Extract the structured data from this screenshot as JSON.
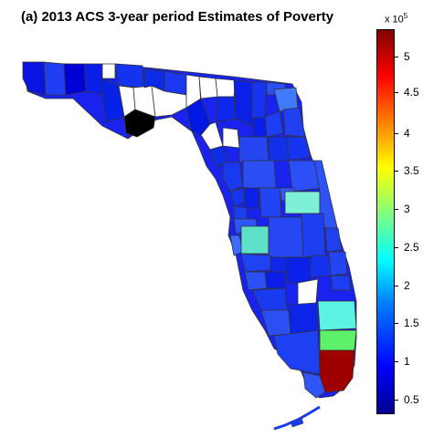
{
  "title": "(a) 2013 ACS 3-year period Estimates of Poverty",
  "colorbar": {
    "multiplier_base": "x 10",
    "multiplier_exponent": "5",
    "ticks": [
      "5",
      "4.5",
      "4",
      "3.5",
      "3",
      "2.5",
      "2",
      "1.5",
      "1",
      "0.5"
    ],
    "min": 0,
    "max": 540000
  },
  "legend_colors": {
    "no_data": "#ffffff",
    "black": "#000000",
    "scale": [
      "#00008f",
      "#0000ff",
      "#0080ff",
      "#00ffff",
      "#80ff80",
      "#ffff00",
      "#ff8000",
      "#ff0000",
      "#800000"
    ]
  }
}
